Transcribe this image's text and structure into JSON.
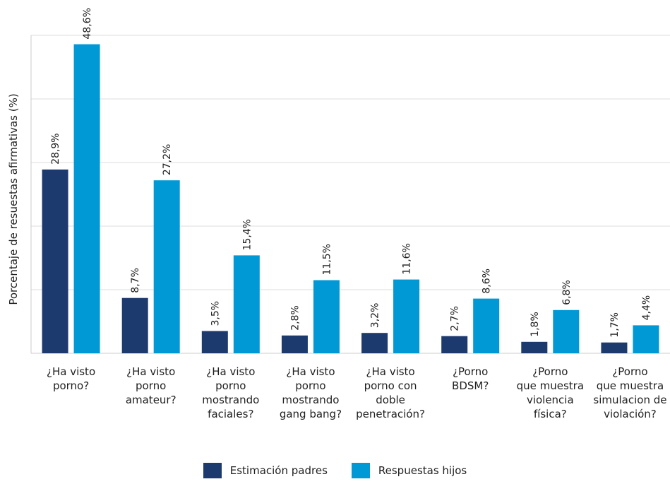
{
  "chart_data": {
    "type": "bar",
    "title": "",
    "xlabel": "",
    "ylabel": "Porcentaje de resuestas afirmativas (%)",
    "ylim": [
      0,
      50
    ],
    "grid": true,
    "legend_position": "bottom",
    "categories": [
      [
        "¿Ha visto",
        "porno?"
      ],
      [
        "¿Ha visto",
        "porno",
        "amateur?"
      ],
      [
        "¿Ha visto",
        "porno",
        "mostrando",
        "faciales?"
      ],
      [
        "¿Ha visto",
        "porno",
        "mostrando",
        "gang bang?"
      ],
      [
        "¿Ha visto",
        "porno con",
        "doble",
        "penetración?"
      ],
      [
        "¿Porno",
        "BDSM?"
      ],
      [
        "¿Porno",
        "que muestra",
        "violencia",
        "física?"
      ],
      [
        "¿Porno",
        "que muestra",
        "simulacion de",
        "violación?"
      ]
    ],
    "series": [
      {
        "name": "Estimación padres",
        "color": "#1d3a6e",
        "values": [
          28.9,
          8.7,
          3.5,
          2.8,
          3.2,
          2.7,
          1.8,
          1.7
        ],
        "labels": [
          "28,9%",
          "8,7%",
          "3,5%",
          "2,8%",
          "3,2%",
          "2,7%",
          "1,8%",
          "1,7%"
        ]
      },
      {
        "name": "Respuestas hijos",
        "color": "#0099d6",
        "values": [
          48.6,
          27.2,
          15.4,
          11.5,
          11.6,
          8.6,
          6.8,
          4.4
        ],
        "labels": [
          "48,6%",
          "27,2%",
          "15,4%",
          "11,5%",
          "11,6%",
          "8,6%",
          "6,8%",
          "4,4%"
        ]
      }
    ]
  }
}
